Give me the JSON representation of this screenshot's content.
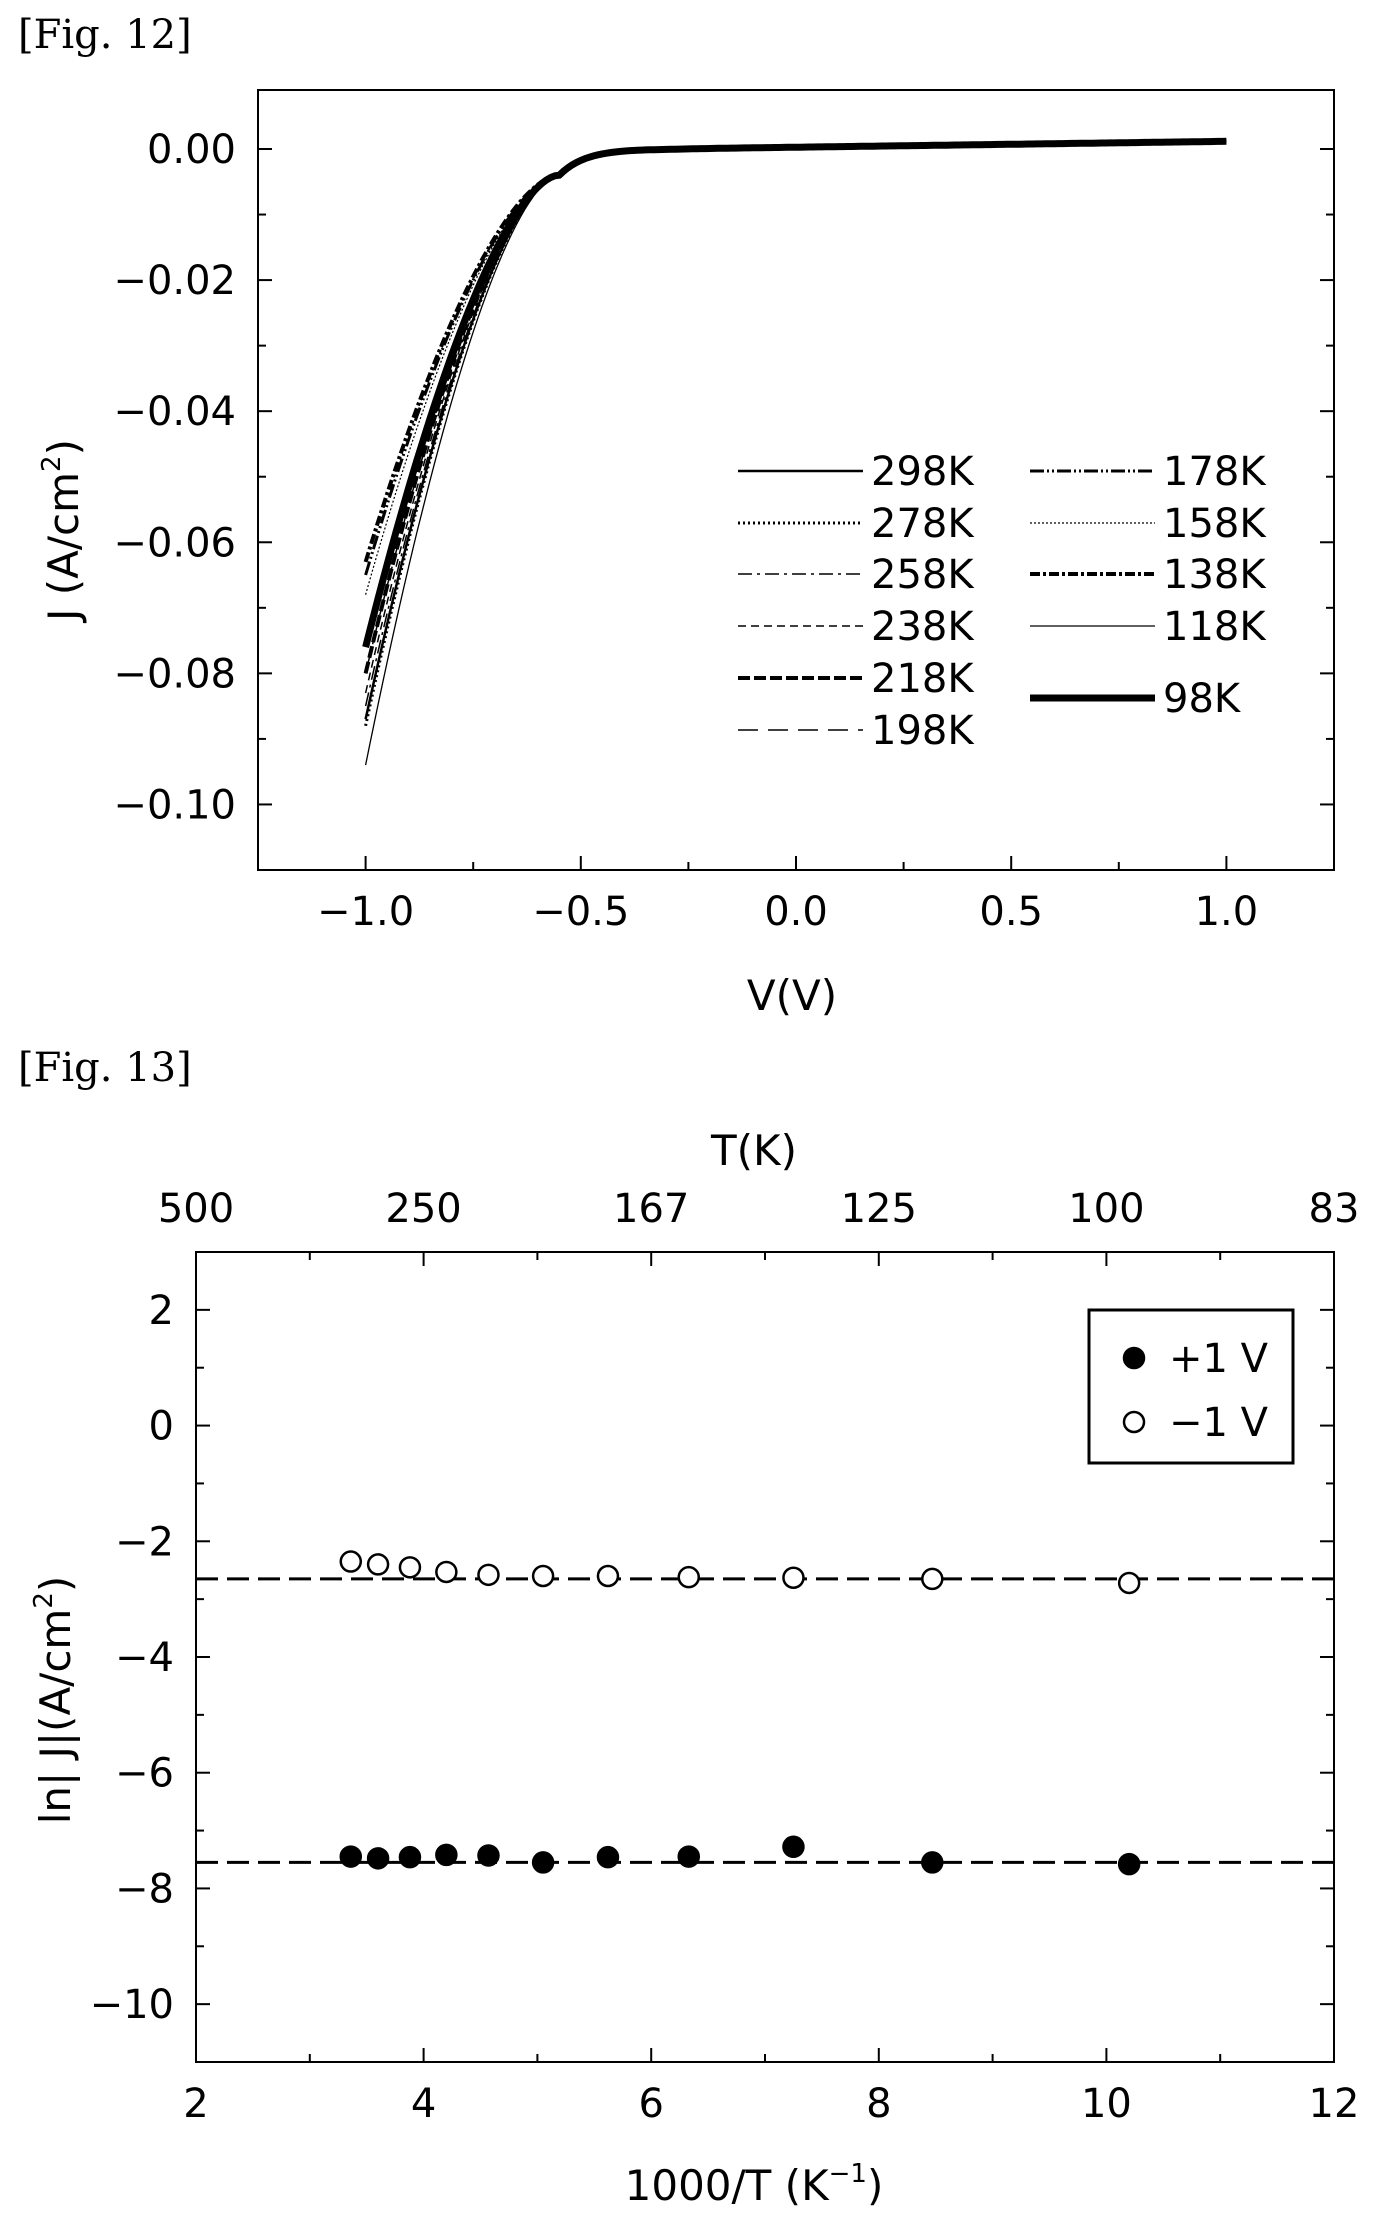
{
  "figures": [
    {
      "label": "[Fig. 12]"
    },
    {
      "label": "[Fig. 13]"
    }
  ],
  "chart_data": [
    {
      "type": "line",
      "title": "",
      "xlabel": "V(V)",
      "ylabel_main": "J (A/cm",
      "ylabel_sup": "2",
      "ylabel_tail": ")",
      "xlim": [
        -1.25,
        1.25
      ],
      "ylim": [
        -0.11,
        0.009
      ],
      "xticks": [
        -1.0,
        -0.5,
        0.0,
        0.5,
        1.0
      ],
      "xtick_labels": [
        "−1.0",
        "−0.5",
        "0.0",
        "0.5",
        "1.0"
      ],
      "yticks": [
        0.0,
        -0.02,
        -0.04,
        -0.06,
        -0.08,
        -0.1
      ],
      "ytick_labels": [
        "0.00",
        "−0.02",
        "−0.04",
        "−0.06",
        "−0.08",
        "−0.10"
      ],
      "legend_position": "center-right",
      "series": [
        {
          "name": "298K",
          "j_at_minus1": -0.087,
          "knee": -0.55
        },
        {
          "name": "278K",
          "j_at_minus1": -0.088,
          "knee": -0.55
        },
        {
          "name": "258K",
          "j_at_minus1": -0.085,
          "knee": -0.55
        },
        {
          "name": "238K",
          "j_at_minus1": -0.083,
          "knee": -0.55
        },
        {
          "name": "218K",
          "j_at_minus1": -0.08,
          "knee": -0.55
        },
        {
          "name": "198K",
          "j_at_minus1": -0.08,
          "knee": -0.55
        },
        {
          "name": "178K",
          "j_at_minus1": -0.065,
          "knee": -0.55
        },
        {
          "name": "158K",
          "j_at_minus1": -0.068,
          "knee": -0.55
        },
        {
          "name": "138K",
          "j_at_minus1": -0.063,
          "knee": -0.55
        },
        {
          "name": "118K",
          "j_at_minus1": -0.094,
          "knee": -0.55
        },
        {
          "name": "98K",
          "j_at_minus1": -0.076,
          "knee": -0.55
        }
      ]
    },
    {
      "type": "scatter",
      "title": "",
      "xlabel": "1000/T (K",
      "xlabel_sup": "−1",
      "xlabel_tail": ")",
      "top_xlabel": "T(K)",
      "ylabel_main": "ln| J|(A/cm",
      "ylabel_sup": "2",
      "ylabel_tail": ")",
      "xlim": [
        2,
        12
      ],
      "ylim": [
        -11,
        3
      ],
      "xticks": [
        2,
        4,
        6,
        8,
        10,
        12
      ],
      "xtick_labels": [
        "2",
        "4",
        "6",
        "8",
        "10",
        "12"
      ],
      "top_ticks_x": [
        2,
        4,
        6,
        8,
        10,
        12
      ],
      "top_tick_labels": [
        "500",
        "250",
        "167",
        "125",
        "100",
        "83"
      ],
      "yticks": [
        2,
        0,
        -2,
        -4,
        -6,
        -8,
        -10
      ],
      "ytick_labels": [
        "2",
        "0",
        "−2",
        "−4",
        "−6",
        "−8",
        "−10"
      ],
      "legend_position": "top-right",
      "series": [
        {
          "name": "+1 V",
          "marker": "filled-circle",
          "x": [
            3.36,
            3.6,
            3.88,
            4.2,
            4.57,
            5.05,
            5.62,
            6.33,
            7.25,
            8.47,
            10.2
          ],
          "y": [
            -7.45,
            -7.48,
            -7.46,
            -7.42,
            -7.43,
            -7.55,
            -7.46,
            -7.45,
            -7.28,
            -7.55,
            -7.58
          ]
        },
        {
          "name": "−1 V",
          "marker": "open-circle",
          "x": [
            3.36,
            3.6,
            3.88,
            4.2,
            4.57,
            5.05,
            5.62,
            6.33,
            7.25,
            8.47,
            10.2
          ],
          "y": [
            -2.35,
            -2.4,
            -2.45,
            -2.53,
            -2.58,
            -2.6,
            -2.6,
            -2.62,
            -2.63,
            -2.65,
            -2.72
          ]
        }
      ],
      "reference_lines": [
        {
          "y": -2.65,
          "style": "dashed"
        },
        {
          "y": -7.55,
          "style": "dashed"
        }
      ]
    }
  ]
}
